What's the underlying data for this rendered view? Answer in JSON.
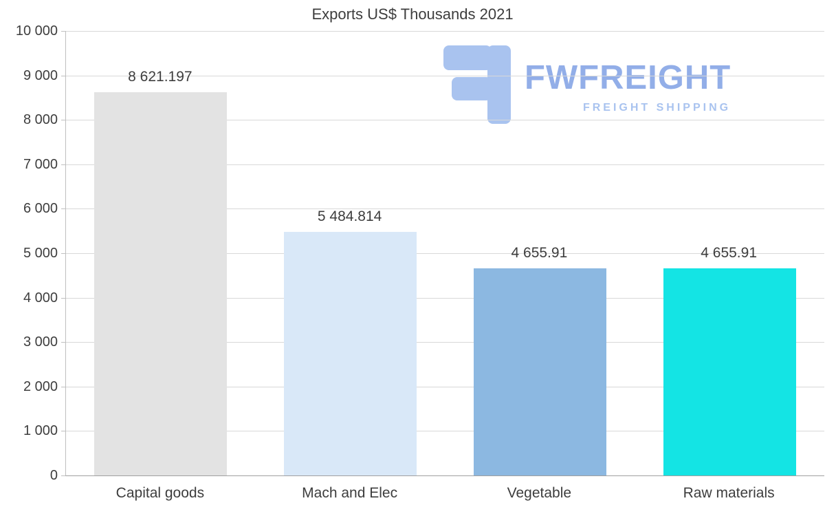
{
  "chart_data": {
    "type": "bar",
    "title": "Exports US$ Thousands 2021",
    "xlabel": "",
    "ylabel": "",
    "categories": [
      "Capital goods",
      "Mach and Elec",
      "Vegetable",
      "Raw materials"
    ],
    "values": [
      8621.197,
      5484.814,
      4655.91,
      4655.91
    ],
    "value_labels": [
      "8 621.197",
      "5 484.814",
      "4 655.91",
      "4 655.91"
    ],
    "bar_colors": [
      "#e3e3e3",
      "#d9e8f8",
      "#8cb8e1",
      "#14e4e4"
    ],
    "ylim": [
      0,
      10000
    ],
    "ytick_step": 1000,
    "ytick_labels": [
      "0",
      "1 000",
      "2 000",
      "3 000",
      "4 000",
      "5 000",
      "6 000",
      "7 000",
      "8 000",
      "9 000",
      "10 000"
    ],
    "grid": true,
    "legend": "none"
  },
  "watermark": {
    "name": "FWFREIGHT",
    "subtitle": "FREIGHT SHIPPING",
    "brand_color": "#92aee8",
    "icon": "fwfreight-logo-mark"
  }
}
